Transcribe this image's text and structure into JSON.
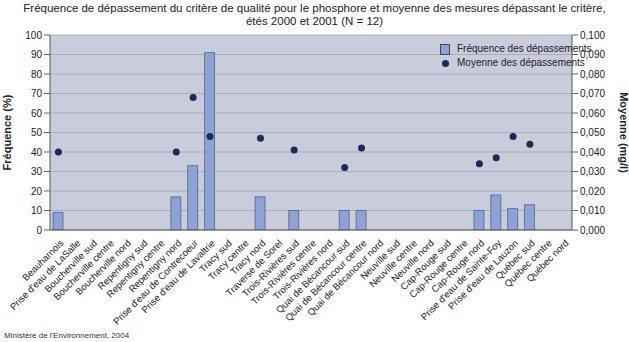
{
  "chart_data": {
    "type": "bar",
    "title": "Fréquence de dépassement du critère de qualité pour le phosphore et moyenne des mesures dépassant le critère, étés 2000 et 2001 (N = 12)",
    "annotation": "Ministère de l'Environnement, 2004",
    "y_label": "Fréquence (%)",
    "y2_label": "Moyenne (mg/l)",
    "categories": [
      "Beauharnois",
      "Prise d'eau de LaSalle",
      "Boucherville sud",
      "Boucherville centre",
      "Boucherville nord",
      "Repentigny sud",
      "Repentigny centre",
      "Repentigny nord",
      "Prise d'eau de Contrecoeur",
      "Prise d'eau de Lavaltrie",
      "Tracy sud",
      "Tracy centre",
      "Tracy nord",
      "Traverse de Sorel",
      "Trois-Rivières sud",
      "Trois-Rivières centre",
      "Trois-Rivières nord",
      "Quai de Bécancour sud",
      "Quai de Bécancour centre",
      "Quai de Bécancour nord",
      "Neuville sud",
      "Neuville centre",
      "Neuville nord",
      "Cap-Rouge sud",
      "Cap-Rouge centre",
      "Cap-Rouge nord",
      "Prise d'eau de Sainte-Foy",
      "Prise d'eau de Lauzon",
      "Québec sud",
      "Québec centre",
      "Québec nord"
    ],
    "series": [
      {
        "name": "Fréquence des dépassements",
        "type": "bar",
        "color": "#8ba3d6",
        "values": [
          9,
          0,
          0,
          0,
          0,
          0,
          0,
          17,
          33,
          91,
          0,
          0,
          17,
          0,
          10,
          0,
          0,
          10,
          10,
          0,
          0,
          0,
          0,
          0,
          0,
          10,
          18,
          11,
          13,
          0,
          0
        ]
      },
      {
        "name": "Moyenne des dépassements",
        "type": "scatter",
        "axis": "y2",
        "marker": "circle",
        "color": "#1b2a5c",
        "values": [
          0.04,
          null,
          null,
          null,
          null,
          null,
          null,
          0.04,
          0.068,
          0.048,
          null,
          null,
          0.047,
          null,
          0.041,
          null,
          null,
          0.032,
          0.042,
          null,
          null,
          null,
          null,
          null,
          null,
          0.034,
          0.037,
          0.048,
          0.044,
          null,
          null
        ]
      }
    ],
    "ylim": [
      0,
      100
    ],
    "yticks": [
      0,
      10,
      20,
      30,
      40,
      50,
      60,
      70,
      80,
      90,
      100
    ],
    "y2lim": [
      0,
      0.1
    ],
    "y2ticks": [
      {
        "value": 0,
        "label": "0,000"
      },
      {
        "value": 0.01,
        "label": "0,010"
      },
      {
        "value": 0.02,
        "label": "0,020"
      },
      {
        "value": 0.03,
        "label": "0,030"
      },
      {
        "value": 0.04,
        "label": "0,040"
      },
      {
        "value": 0.05,
        "label": "0,050"
      },
      {
        "value": 0.06,
        "label": "0,060"
      },
      {
        "value": 0.07,
        "label": "0,070"
      },
      {
        "value": 0.08,
        "label": "0,080"
      },
      {
        "value": 0.09,
        "label": "0,090"
      },
      {
        "value": 0.1,
        "label": "0,100"
      }
    ],
    "grid": true,
    "legend": "upper right"
  }
}
